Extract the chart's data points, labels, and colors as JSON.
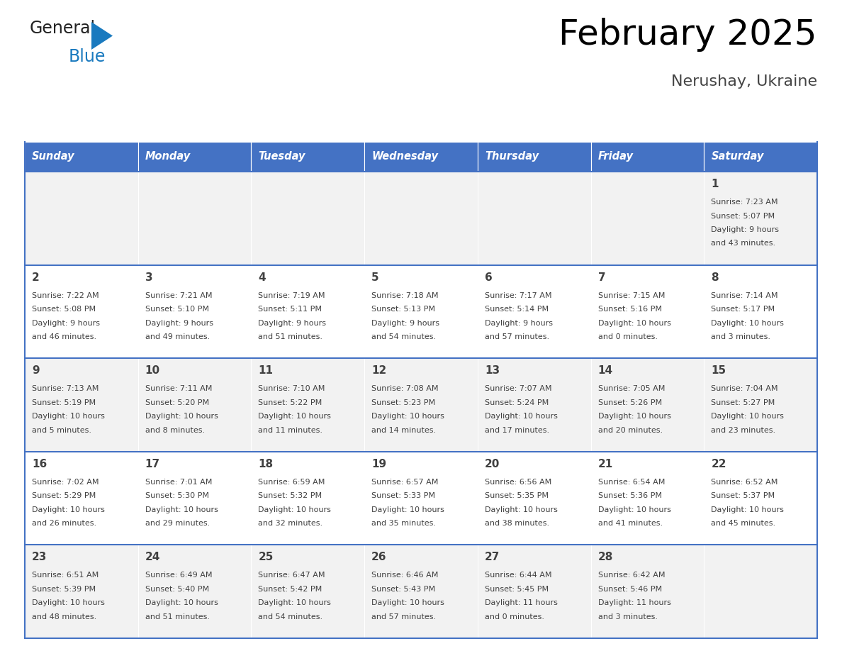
{
  "title": "February 2025",
  "subtitle": "Nerushay, Ukraine",
  "header_bg": "#4472C4",
  "header_text_color": "#FFFFFF",
  "cell_bg_light": "#F2F2F2",
  "cell_bg_white": "#FFFFFF",
  "separator_color": "#4472C4",
  "text_color": "#404040",
  "days_of_week": [
    "Sunday",
    "Monday",
    "Tuesday",
    "Wednesday",
    "Thursday",
    "Friday",
    "Saturday"
  ],
  "calendar": [
    [
      null,
      null,
      null,
      null,
      null,
      null,
      {
        "day": "1",
        "sunrise": "7:23 AM",
        "sunset": "5:07 PM",
        "daylight1": "9 hours",
        "daylight2": "and 43 minutes."
      }
    ],
    [
      {
        "day": "2",
        "sunrise": "7:22 AM",
        "sunset": "5:08 PM",
        "daylight1": "9 hours",
        "daylight2": "and 46 minutes."
      },
      {
        "day": "3",
        "sunrise": "7:21 AM",
        "sunset": "5:10 PM",
        "daylight1": "9 hours",
        "daylight2": "and 49 minutes."
      },
      {
        "day": "4",
        "sunrise": "7:19 AM",
        "sunset": "5:11 PM",
        "daylight1": "9 hours",
        "daylight2": "and 51 minutes."
      },
      {
        "day": "5",
        "sunrise": "7:18 AM",
        "sunset": "5:13 PM",
        "daylight1": "9 hours",
        "daylight2": "and 54 minutes."
      },
      {
        "day": "6",
        "sunrise": "7:17 AM",
        "sunset": "5:14 PM",
        "daylight1": "9 hours",
        "daylight2": "and 57 minutes."
      },
      {
        "day": "7",
        "sunrise": "7:15 AM",
        "sunset": "5:16 PM",
        "daylight1": "10 hours",
        "daylight2": "and 0 minutes."
      },
      {
        "day": "8",
        "sunrise": "7:14 AM",
        "sunset": "5:17 PM",
        "daylight1": "10 hours",
        "daylight2": "and 3 minutes."
      }
    ],
    [
      {
        "day": "9",
        "sunrise": "7:13 AM",
        "sunset": "5:19 PM",
        "daylight1": "10 hours",
        "daylight2": "and 5 minutes."
      },
      {
        "day": "10",
        "sunrise": "7:11 AM",
        "sunset": "5:20 PM",
        "daylight1": "10 hours",
        "daylight2": "and 8 minutes."
      },
      {
        "day": "11",
        "sunrise": "7:10 AM",
        "sunset": "5:22 PM",
        "daylight1": "10 hours",
        "daylight2": "and 11 minutes."
      },
      {
        "day": "12",
        "sunrise": "7:08 AM",
        "sunset": "5:23 PM",
        "daylight1": "10 hours",
        "daylight2": "and 14 minutes."
      },
      {
        "day": "13",
        "sunrise": "7:07 AM",
        "sunset": "5:24 PM",
        "daylight1": "10 hours",
        "daylight2": "and 17 minutes."
      },
      {
        "day": "14",
        "sunrise": "7:05 AM",
        "sunset": "5:26 PM",
        "daylight1": "10 hours",
        "daylight2": "and 20 minutes."
      },
      {
        "day": "15",
        "sunrise": "7:04 AM",
        "sunset": "5:27 PM",
        "daylight1": "10 hours",
        "daylight2": "and 23 minutes."
      }
    ],
    [
      {
        "day": "16",
        "sunrise": "7:02 AM",
        "sunset": "5:29 PM",
        "daylight1": "10 hours",
        "daylight2": "and 26 minutes."
      },
      {
        "day": "17",
        "sunrise": "7:01 AM",
        "sunset": "5:30 PM",
        "daylight1": "10 hours",
        "daylight2": "and 29 minutes."
      },
      {
        "day": "18",
        "sunrise": "6:59 AM",
        "sunset": "5:32 PM",
        "daylight1": "10 hours",
        "daylight2": "and 32 minutes."
      },
      {
        "day": "19",
        "sunrise": "6:57 AM",
        "sunset": "5:33 PM",
        "daylight1": "10 hours",
        "daylight2": "and 35 minutes."
      },
      {
        "day": "20",
        "sunrise": "6:56 AM",
        "sunset": "5:35 PM",
        "daylight1": "10 hours",
        "daylight2": "and 38 minutes."
      },
      {
        "day": "21",
        "sunrise": "6:54 AM",
        "sunset": "5:36 PM",
        "daylight1": "10 hours",
        "daylight2": "and 41 minutes."
      },
      {
        "day": "22",
        "sunrise": "6:52 AM",
        "sunset": "5:37 PM",
        "daylight1": "10 hours",
        "daylight2": "and 45 minutes."
      }
    ],
    [
      {
        "day": "23",
        "sunrise": "6:51 AM",
        "sunset": "5:39 PM",
        "daylight1": "10 hours",
        "daylight2": "and 48 minutes."
      },
      {
        "day": "24",
        "sunrise": "6:49 AM",
        "sunset": "5:40 PM",
        "daylight1": "10 hours",
        "daylight2": "and 51 minutes."
      },
      {
        "day": "25",
        "sunrise": "6:47 AM",
        "sunset": "5:42 PM",
        "daylight1": "10 hours",
        "daylight2": "and 54 minutes."
      },
      {
        "day": "26",
        "sunrise": "6:46 AM",
        "sunset": "5:43 PM",
        "daylight1": "10 hours",
        "daylight2": "and 57 minutes."
      },
      {
        "day": "27",
        "sunrise": "6:44 AM",
        "sunset": "5:45 PM",
        "daylight1": "11 hours",
        "daylight2": "and 0 minutes."
      },
      {
        "day": "28",
        "sunrise": "6:42 AM",
        "sunset": "5:46 PM",
        "daylight1": "11 hours",
        "daylight2": "and 3 minutes."
      },
      null
    ]
  ],
  "logo_general_color": "#222222",
  "logo_blue_color": "#1a7abf",
  "logo_triangle_color": "#1a7abf"
}
